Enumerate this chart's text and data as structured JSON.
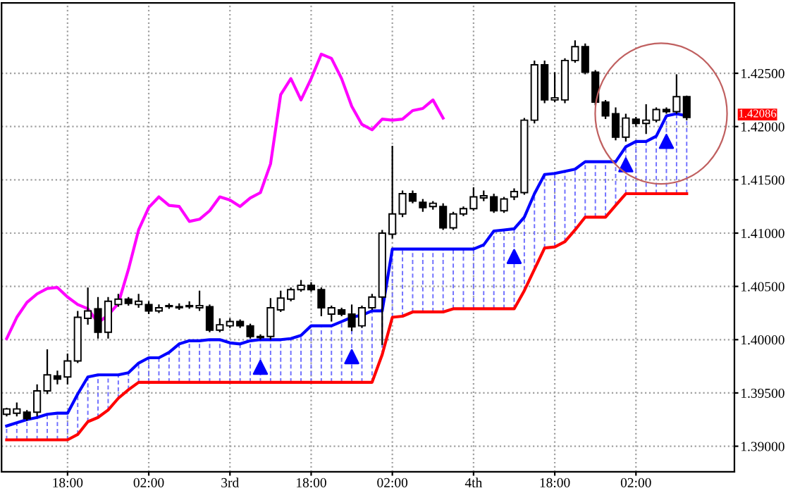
{
  "chart_data": {
    "type": "candlestick",
    "categories": [
      null,
      null,
      null,
      null,
      null,
      null,
      "18:00",
      null,
      null,
      null,
      null,
      null,
      null,
      null,
      "02:00",
      null,
      null,
      null,
      null,
      null,
      null,
      null,
      "3rd",
      null,
      null,
      null,
      null,
      null,
      null,
      null,
      "18:00",
      null,
      null,
      null,
      null,
      null,
      null,
      null,
      "02:00",
      null,
      null,
      null,
      null,
      null,
      null,
      null,
      "4th",
      null,
      null,
      null,
      null,
      null,
      null,
      null,
      "18:00",
      null,
      null,
      null,
      null,
      null,
      null,
      null,
      "02:00",
      null,
      null,
      null,
      null,
      null
    ],
    "ohlc": [
      [
        1.393,
        1.3936,
        1.3928,
        1.3935
      ],
      [
        1.3931,
        1.3941,
        1.3928,
        1.3935
      ],
      [
        1.3932,
        1.3934,
        1.3924,
        1.3926
      ],
      [
        1.3932,
        1.3958,
        1.3928,
        1.3952
      ],
      [
        1.3952,
        1.3991,
        1.3949,
        1.3967
      ],
      [
        1.3966,
        1.3971,
        1.3958,
        1.3963
      ],
      [
        1.3965,
        1.3987,
        1.3958,
        1.398
      ],
      [
        1.398,
        1.4027,
        1.3978,
        1.4021
      ],
      [
        1.402,
        1.4049,
        1.4014,
        1.4027
      ],
      [
        1.4029,
        1.404,
        1.4001,
        1.4007
      ],
      [
        1.4007,
        1.404,
        1.4001,
        1.4036
      ],
      [
        1.4033,
        1.4043,
        1.4031,
        1.4038
      ],
      [
        1.4038,
        1.404,
        1.4032,
        1.4034
      ],
      [
        1.4033,
        1.4043,
        1.403,
        1.4036
      ],
      [
        1.4033,
        1.4036,
        1.4024,
        1.4027
      ],
      [
        1.4027,
        1.4033,
        1.4025,
        1.403
      ],
      [
        1.4031,
        1.4034,
        1.4029,
        1.4032
      ],
      [
        1.4031,
        1.4034,
        1.4028,
        1.403
      ],
      [
        1.4031,
        1.4036,
        1.4029,
        1.4032
      ],
      [
        1.403,
        1.4046,
        1.4027,
        1.4032
      ],
      [
        1.4031,
        1.4033,
        1.4007,
        1.4009
      ],
      [
        1.4009,
        1.402,
        1.4007,
        1.4014
      ],
      [
        1.4013,
        1.402,
        1.4011,
        1.4017
      ],
      [
        1.4017,
        1.4019,
        1.4011,
        1.4013
      ],
      [
        1.4013,
        1.4015,
        1.4001,
        1.4003
      ],
      [
        1.4002,
        1.4005,
        1.4,
        1.4003
      ],
      [
        1.4003,
        1.4039,
        1.4,
        1.403
      ],
      [
        1.4028,
        1.4046,
        1.4026,
        1.4039
      ],
      [
        1.4038,
        1.4049,
        1.4036,
        1.4047
      ],
      [
        1.4047,
        1.4056,
        1.4045,
        1.4051
      ],
      [
        1.4051,
        1.4054,
        1.4045,
        1.4047
      ],
      [
        1.4047,
        1.4049,
        1.4022,
        1.403
      ],
      [
        1.4024,
        1.4032,
        1.4017,
        1.403
      ],
      [
        1.4028,
        1.403,
        1.4022,
        1.4024
      ],
      [
        1.4024,
        1.4033,
        1.4008,
        1.4012
      ],
      [
        1.4013,
        1.4032,
        1.4011,
        1.403
      ],
      [
        1.403,
        1.4043,
        1.4028,
        1.404
      ],
      [
        1.404,
        1.4103,
        1.3995,
        1.41
      ],
      [
        1.4099,
        1.4182,
        1.4095,
        1.4118
      ],
      [
        1.4118,
        1.414,
        1.4115,
        1.4137
      ],
      [
        1.4137,
        1.414,
        1.4128,
        1.413
      ],
      [
        1.4129,
        1.4132,
        1.412,
        1.4124
      ],
      [
        1.4125,
        1.413,
        1.4122,
        1.4128
      ],
      [
        1.4125,
        1.4128,
        1.4103,
        1.4105
      ],
      [
        1.4105,
        1.412,
        1.4103,
        1.4118
      ],
      [
        1.4118,
        1.4125,
        1.4116,
        1.4123
      ],
      [
        1.4123,
        1.4143,
        1.4121,
        1.4134
      ],
      [
        1.4133,
        1.414,
        1.413,
        1.4135
      ],
      [
        1.4134,
        1.4137,
        1.4119,
        1.4121
      ],
      [
        1.4121,
        1.4134,
        1.4119,
        1.4132
      ],
      [
        1.4134,
        1.4142,
        1.4131,
        1.4139
      ],
      [
        1.4138,
        1.4208,
        1.4136,
        1.4206
      ],
      [
        1.4206,
        1.4262,
        1.4203,
        1.4258
      ],
      [
        1.4258,
        1.4262,
        1.4222,
        1.4225
      ],
      [
        1.4225,
        1.4251,
        1.4223,
        1.4227
      ],
      [
        1.4225,
        1.4264,
        1.4222,
        1.4262
      ],
      [
        1.4262,
        1.4281,
        1.426,
        1.4275
      ],
      [
        1.4275,
        1.4278,
        1.4249,
        1.4251
      ],
      [
        1.4251,
        1.4253,
        1.422,
        1.4223
      ],
      [
        1.4223,
        1.4225,
        1.4207,
        1.421
      ],
      [
        1.4212,
        1.4218,
        1.4187,
        1.419
      ],
      [
        1.419,
        1.4212,
        1.4186,
        1.4208
      ],
      [
        1.4207,
        1.4209,
        1.42,
        1.4203
      ],
      [
        1.4203,
        1.4221,
        1.4193,
        1.4206
      ],
      [
        1.4206,
        1.4218,
        1.4204,
        1.4216
      ],
      [
        1.4216,
        1.4218,
        1.4212,
        1.4214
      ],
      [
        1.4214,
        1.4249,
        1.4212,
        1.4228
      ],
      [
        1.4228,
        1.4229,
        1.4206,
        1.42086
      ]
    ],
    "series": [
      {
        "type": "line",
        "color": "#ff00ff",
        "values": [
          1.4001,
          1.4021,
          1.4035,
          1.4043,
          1.4048,
          1.4049,
          1.404,
          1.4033,
          1.4029,
          1.4016,
          1.4023,
          1.4034,
          1.4066,
          1.4103,
          1.4124,
          1.4134,
          1.4126,
          1.4125,
          1.4111,
          1.4113,
          1.4121,
          1.4134,
          1.4131,
          1.4125,
          1.4133,
          1.4138,
          1.4165,
          1.423,
          1.4245,
          1.4225,
          1.4245,
          1.4268,
          1.4264,
          1.4245,
          1.4219,
          1.4202,
          1.4197,
          1.4207,
          1.4206,
          1.4207,
          1.4215,
          1.4217,
          1.4225,
          1.4208,
          null,
          null,
          null,
          null,
          null,
          null,
          null,
          null,
          null,
          null,
          null,
          null,
          null,
          null,
          null,
          null,
          null,
          null,
          null,
          null,
          null,
          null,
          null,
          null
        ]
      },
      {
        "type": "line",
        "color": "#0000ff",
        "values": [
          1.3919,
          1.3922,
          1.3925,
          1.3927,
          1.393,
          1.3931,
          1.3931,
          1.3949,
          1.3965,
          1.3967,
          1.3967,
          1.3967,
          1.3969,
          1.3978,
          1.3983,
          1.3983,
          1.3988,
          1.3996,
          1.3999,
          1.3999,
          1.4,
          1.4,
          1.3997,
          1.3996,
          1.3999,
          1.4,
          1.4,
          1.4,
          1.4001,
          1.4004,
          1.4013,
          1.4013,
          1.4013,
          1.4017,
          1.4021,
          1.4023,
          1.4027,
          1.4027,
          1.4085,
          1.4085,
          1.4085,
          1.4085,
          1.4085,
          1.4085,
          1.4085,
          1.4085,
          1.4085,
          1.4089,
          1.4102,
          1.4103,
          1.4104,
          1.4115,
          1.4137,
          1.4155,
          1.4156,
          1.4158,
          1.416,
          1.4167,
          1.4167,
          1.4167,
          1.4167,
          1.4181,
          1.4186,
          1.4186,
          1.4191,
          1.421,
          1.4212,
          1.421
        ]
      },
      {
        "type": "line",
        "color": "#ff0000",
        "values": [
          1.3906,
          1.3906,
          1.3906,
          1.3906,
          1.3906,
          1.3906,
          1.3906,
          1.3911,
          1.3923,
          1.3927,
          1.3934,
          1.3945,
          1.3953,
          1.396,
          1.396,
          1.396,
          1.396,
          1.396,
          1.396,
          1.396,
          1.396,
          1.396,
          1.396,
          1.396,
          1.396,
          1.396,
          1.396,
          1.396,
          1.396,
          1.396,
          1.396,
          1.396,
          1.396,
          1.396,
          1.396,
          1.396,
          1.396,
          1.3986,
          1.4021,
          1.4022,
          1.4026,
          1.4026,
          1.4026,
          1.4026,
          1.4029,
          1.4029,
          1.4029,
          1.4029,
          1.4029,
          1.4029,
          1.4029,
          1.4046,
          1.4066,
          1.4086,
          1.4087,
          1.4092,
          1.4103,
          1.4115,
          1.4115,
          1.4115,
          1.4126,
          1.4137,
          1.4137,
          1.4137,
          1.4137,
          1.4137,
          1.4137,
          1.4137
        ]
      },
      {
        "type": "scatter",
        "color": "#0000ff",
        "marker": "triangle",
        "values": [
          null,
          null,
          null,
          null,
          null,
          null,
          null,
          null,
          null,
          null,
          null,
          null,
          null,
          null,
          null,
          null,
          null,
          null,
          null,
          null,
          null,
          null,
          null,
          null,
          null,
          1.3974,
          null,
          null,
          null,
          null,
          null,
          null,
          null,
          null,
          1.3984,
          null,
          null,
          null,
          null,
          null,
          null,
          null,
          null,
          null,
          null,
          null,
          null,
          null,
          null,
          null,
          1.4078,
          null,
          null,
          null,
          null,
          null,
          null,
          null,
          null,
          null,
          null,
          1.4164,
          null,
          null,
          null,
          1.4186,
          null,
          null
        ]
      }
    ],
    "ylim": [
      1.3876,
      1.4316
    ],
    "yticks": [
      {
        "value": 1.39,
        "label": "1.39000"
      },
      {
        "value": 1.395,
        "label": "1.39500"
      },
      {
        "value": 1.4,
        "label": "1.40000"
      },
      {
        "value": 1.405,
        "label": "1.40500"
      },
      {
        "value": 1.41,
        "label": "1.41000"
      },
      {
        "value": 1.415,
        "label": "1.41500"
      },
      {
        "value": 1.42,
        "label": "1.42000"
      },
      {
        "value": 1.425,
        "label": "1.42500"
      }
    ],
    "annotations": [
      "1.42086"
    ],
    "grid": true
  }
}
